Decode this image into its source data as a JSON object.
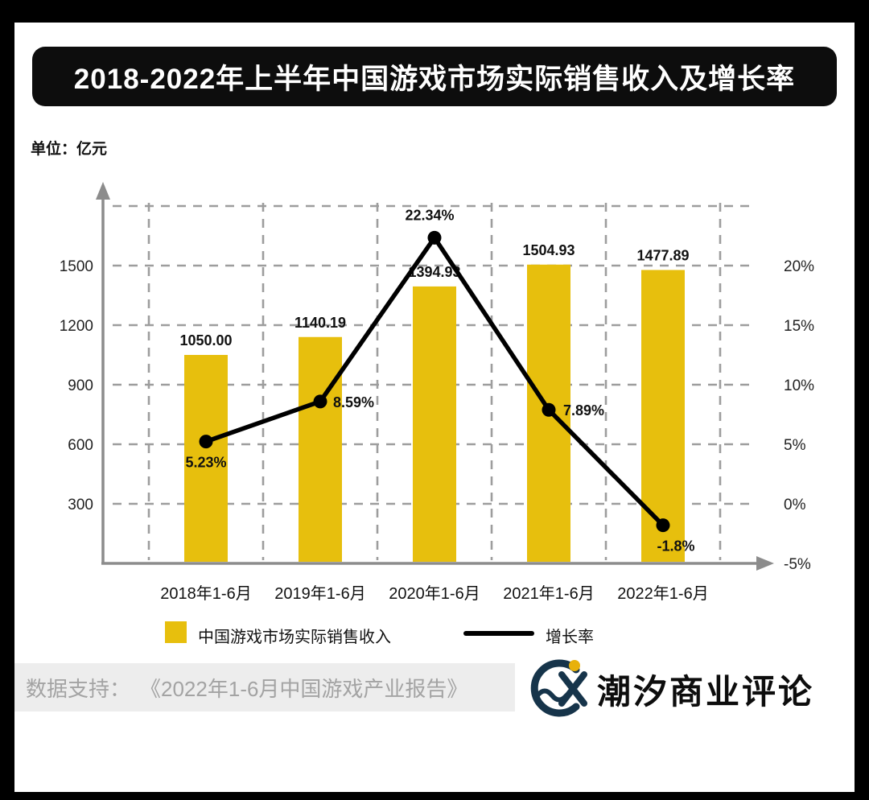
{
  "title": "2018-2022年上半年中国游戏市场实际销售收入及增长率",
  "unit_label": "单位：亿元",
  "legend": {
    "bar_label": "中国游戏市场实际销售收入",
    "line_label": "增长率"
  },
  "footer": {
    "source_prefix": "数据支持：",
    "source": "《2022年1-6月中国游戏产业报告》"
  },
  "brand": {
    "name": "潮汐商业评论"
  },
  "colors": {
    "bar": "#e7bf0d",
    "line": "#000000",
    "grid": "#9d9d9d",
    "axis": "#8c8c8c",
    "banner": "#0d0d0d",
    "footer_bg": "#ededed",
    "footer_text": "#a3a3a3",
    "logo": "#16344a",
    "logo_accent": "#e8b10a"
  },
  "chart_data": {
    "type": "bar+line",
    "categories": [
      "2018年1-6月",
      "2019年1-6月",
      "2020年1-6月",
      "2021年1-6月",
      "2022年1-6月"
    ],
    "series": [
      {
        "name": "中国游戏市场实际销售收入",
        "type": "bar",
        "values": [
          1050.0,
          1140.19,
          1394.93,
          1504.93,
          1477.89
        ],
        "labels": [
          "1050.00",
          "1140.19",
          "1394.93",
          "1504.93",
          "1477.89"
        ]
      },
      {
        "name": "增长率",
        "type": "line",
        "values": [
          5.23,
          8.59,
          22.34,
          7.89,
          -1.8
        ],
        "labels": [
          "5.23%",
          "8.59%",
          "22.34%",
          "7.89%",
          "-1.8%"
        ]
      }
    ],
    "left_axis": {
      "unit": "亿元",
      "ticks": [
        300,
        600,
        900,
        1200,
        1500
      ],
      "min": 0,
      "max": 1800
    },
    "right_axis": {
      "ticks": [
        "-5%",
        "0%",
        "5%",
        "10%",
        "15%",
        "20%"
      ],
      "min": -5,
      "max": 25
    },
    "grid": "dashed",
    "legend_position": "bottom"
  }
}
